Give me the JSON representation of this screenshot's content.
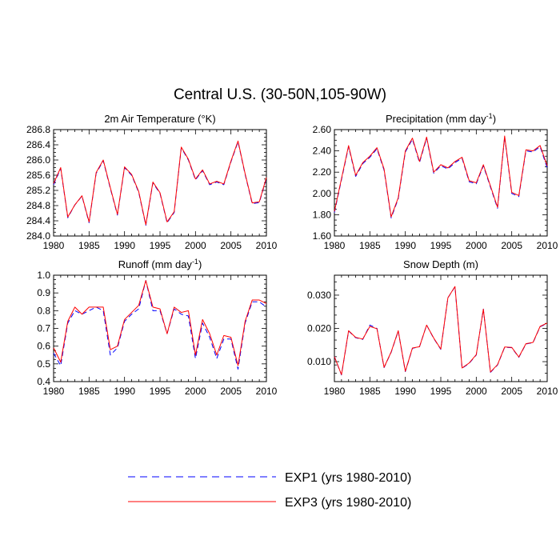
{
  "title": "Central U.S. (30-50N,105-90W)",
  "legend": [
    {
      "label": "EXP1 (yrs 1980-2010)",
      "color": "#0000ff",
      "dash": "dashed"
    },
    {
      "label": "EXP3 (yrs 1980-2010)",
      "color": "#ff0000",
      "dash": "solid"
    }
  ],
  "chart_data": [
    {
      "type": "line",
      "title": "2m Air Temperature (°K)",
      "xlim": [
        1980,
        2010
      ],
      "ylim": [
        284.0,
        286.8
      ],
      "xticks": [
        1980,
        1985,
        1990,
        1995,
        2000,
        2005,
        2010
      ],
      "xtick_labels": [
        "1980",
        "1985",
        "1990",
        "1995",
        "2000",
        "2005",
        "2010"
      ],
      "yticks": [
        284.0,
        284.4,
        284.8,
        285.2,
        285.6,
        286.0,
        286.4,
        286.8
      ],
      "ytick_labels": [
        "284.0",
        "284.4",
        "284.8",
        "285.2",
        "285.6",
        "286.0",
        "286.4",
        "286.8"
      ],
      "x": [
        1980,
        1981,
        1982,
        1983,
        1984,
        1985,
        1986,
        1987,
        1988,
        1989,
        1990,
        1991,
        1992,
        1993,
        1994,
        1995,
        1996,
        1997,
        1998,
        1999,
        2000,
        2001,
        2002,
        2003,
        2004,
        2005,
        2006,
        2007,
        2008,
        2009,
        2010
      ],
      "series": [
        {
          "name": "EXP1",
          "values": [
            285.35,
            285.78,
            284.48,
            284.82,
            285.05,
            284.35,
            285.65,
            285.98,
            285.25,
            284.55,
            285.8,
            285.6,
            285.15,
            284.28,
            285.4,
            285.12,
            284.35,
            284.62,
            286.32,
            286.0,
            285.48,
            285.72,
            285.35,
            285.42,
            285.35,
            285.95,
            286.48,
            285.62,
            284.85,
            284.88,
            285.52
          ]
        },
        {
          "name": "EXP3",
          "values": [
            285.38,
            285.8,
            284.5,
            284.82,
            285.06,
            284.37,
            285.67,
            286.0,
            285.27,
            284.57,
            285.82,
            285.62,
            285.17,
            284.3,
            285.42,
            285.14,
            284.37,
            284.64,
            286.34,
            286.02,
            285.5,
            285.74,
            285.37,
            285.44,
            285.37,
            285.97,
            286.5,
            285.64,
            284.87,
            284.9,
            285.54
          ]
        }
      ]
    },
    {
      "type": "line",
      "title": "Precipitation (mm day",
      "title_sup": "-1",
      "title_end": ")",
      "xlim": [
        1980,
        2010
      ],
      "ylim": [
        1.6,
        2.6
      ],
      "xticks": [
        1980,
        1985,
        1990,
        1995,
        2000,
        2005,
        2010
      ],
      "xtick_labels": [
        "1980",
        "1985",
        "1990",
        "1995",
        "2000",
        "2005",
        "2010"
      ],
      "yticks": [
        1.6,
        1.8,
        2.0,
        2.2,
        2.4,
        2.6
      ],
      "ytick_labels": [
        "1.60",
        "1.80",
        "2.00",
        "2.20",
        "2.40",
        "2.60"
      ],
      "x": [
        1980,
        1981,
        1982,
        1983,
        1984,
        1985,
        1986,
        1987,
        1988,
        1989,
        1990,
        1991,
        1992,
        1993,
        1994,
        1995,
        1996,
        1997,
        1998,
        1999,
        2000,
        2001,
        2002,
        2003,
        2004,
        2005,
        2006,
        2007,
        2008,
        2009,
        2010
      ],
      "series": [
        {
          "name": "EXP1",
          "values": [
            1.82,
            2.13,
            2.44,
            2.16,
            2.28,
            2.34,
            2.42,
            2.22,
            1.77,
            1.95,
            2.39,
            2.51,
            2.29,
            2.52,
            2.19,
            2.26,
            2.23,
            2.29,
            2.33,
            2.11,
            2.09,
            2.26,
            2.06,
            1.86,
            2.53,
            2.0,
            1.97,
            2.4,
            2.39,
            2.44,
            2.24
          ]
        },
        {
          "name": "EXP3",
          "values": [
            1.83,
            2.14,
            2.45,
            2.17,
            2.29,
            2.35,
            2.43,
            2.23,
            1.78,
            1.96,
            2.4,
            2.52,
            2.3,
            2.53,
            2.2,
            2.27,
            2.24,
            2.3,
            2.34,
            2.12,
            2.1,
            2.27,
            2.07,
            1.87,
            2.54,
            2.01,
            1.98,
            2.41,
            2.4,
            2.45,
            2.26
          ]
        }
      ]
    },
    {
      "type": "line",
      "title": "Runoff (mm day",
      "title_sup": "-1",
      "title_end": ")",
      "xlim": [
        1980,
        2010
      ],
      "ylim": [
        0.4,
        1.0
      ],
      "xticks": [
        1980,
        1985,
        1990,
        1995,
        2000,
        2005,
        2010
      ],
      "xtick_labels": [
        "1980",
        "1985",
        "1990",
        "1995",
        "2000",
        "2005",
        "2010"
      ],
      "yticks": [
        0.4,
        0.5,
        0.6,
        0.7,
        0.8,
        0.9,
        1.0
      ],
      "ytick_labels": [
        "0.4",
        "0.5",
        "0.6",
        "0.7",
        "0.8",
        "0.9",
        "1.0"
      ],
      "x": [
        1980,
        1981,
        1982,
        1983,
        1984,
        1985,
        1986,
        1987,
        1988,
        1989,
        1990,
        1991,
        1992,
        1993,
        1994,
        1995,
        1996,
        1997,
        1998,
        1999,
        2000,
        2001,
        2002,
        2003,
        2004,
        2005,
        2006,
        2007,
        2008,
        2009,
        2010
      ],
      "series": [
        {
          "name": "EXP1",
          "values": [
            0.56,
            0.49,
            0.73,
            0.8,
            0.78,
            0.8,
            0.82,
            0.8,
            0.55,
            0.59,
            0.74,
            0.78,
            0.81,
            0.97,
            0.8,
            0.8,
            0.67,
            0.81,
            0.78,
            0.77,
            0.53,
            0.73,
            0.65,
            0.53,
            0.64,
            0.64,
            0.47,
            0.73,
            0.85,
            0.85,
            0.82
          ]
        },
        {
          "name": "EXP3",
          "values": [
            0.59,
            0.51,
            0.74,
            0.82,
            0.78,
            0.82,
            0.82,
            0.82,
            0.58,
            0.6,
            0.75,
            0.79,
            0.83,
            0.97,
            0.82,
            0.81,
            0.67,
            0.82,
            0.79,
            0.8,
            0.55,
            0.75,
            0.67,
            0.55,
            0.66,
            0.65,
            0.49,
            0.74,
            0.86,
            0.86,
            0.84
          ]
        }
      ]
    },
    {
      "type": "line",
      "title": "Snow Depth (m)",
      "xlim": [
        1980,
        2010
      ],
      "ylim": [
        0.004,
        0.036
      ],
      "xticks": [
        1980,
        1985,
        1990,
        1995,
        2000,
        2005,
        2010
      ],
      "xtick_labels": [
        "1980",
        "1985",
        "1990",
        "1995",
        "2000",
        "2005",
        "2010"
      ],
      "yticks": [
        0.01,
        0.02,
        0.03
      ],
      "ytick_labels": [
        "0.010",
        "0.020",
        "0.030"
      ],
      "x": [
        1980,
        1981,
        1982,
        1983,
        1984,
        1985,
        1986,
        1987,
        1988,
        1989,
        1990,
        1991,
        1992,
        1993,
        1994,
        1995,
        1996,
        1997,
        1998,
        1999,
        2000,
        2001,
        2002,
        2003,
        2004,
        2005,
        2006,
        2007,
        2008,
        2009,
        2010
      ],
      "series": [
        {
          "name": "EXP1",
          "values": [
            0.0115,
            0.006,
            0.0192,
            0.0172,
            0.0167,
            0.021,
            0.02,
            0.0082,
            0.0128,
            0.0192,
            0.007,
            0.014,
            0.0145,
            0.021,
            0.017,
            0.0137,
            0.0292,
            0.0325,
            0.008,
            0.0095,
            0.012,
            0.0258,
            0.0068,
            0.009,
            0.0143,
            0.0142,
            0.0113,
            0.0153,
            0.0157,
            0.0205,
            0.0215
          ]
        },
        {
          "name": "EXP3",
          "values": [
            0.0115,
            0.0061,
            0.0193,
            0.0173,
            0.0168,
            0.0206,
            0.0199,
            0.0083,
            0.0129,
            0.0193,
            0.0071,
            0.0141,
            0.0145,
            0.021,
            0.0171,
            0.0138,
            0.0292,
            0.0326,
            0.0081,
            0.0096,
            0.0121,
            0.0258,
            0.0069,
            0.0091,
            0.0144,
            0.0143,
            0.0114,
            0.0154,
            0.0158,
            0.0206,
            0.0216
          ]
        }
      ]
    }
  ]
}
